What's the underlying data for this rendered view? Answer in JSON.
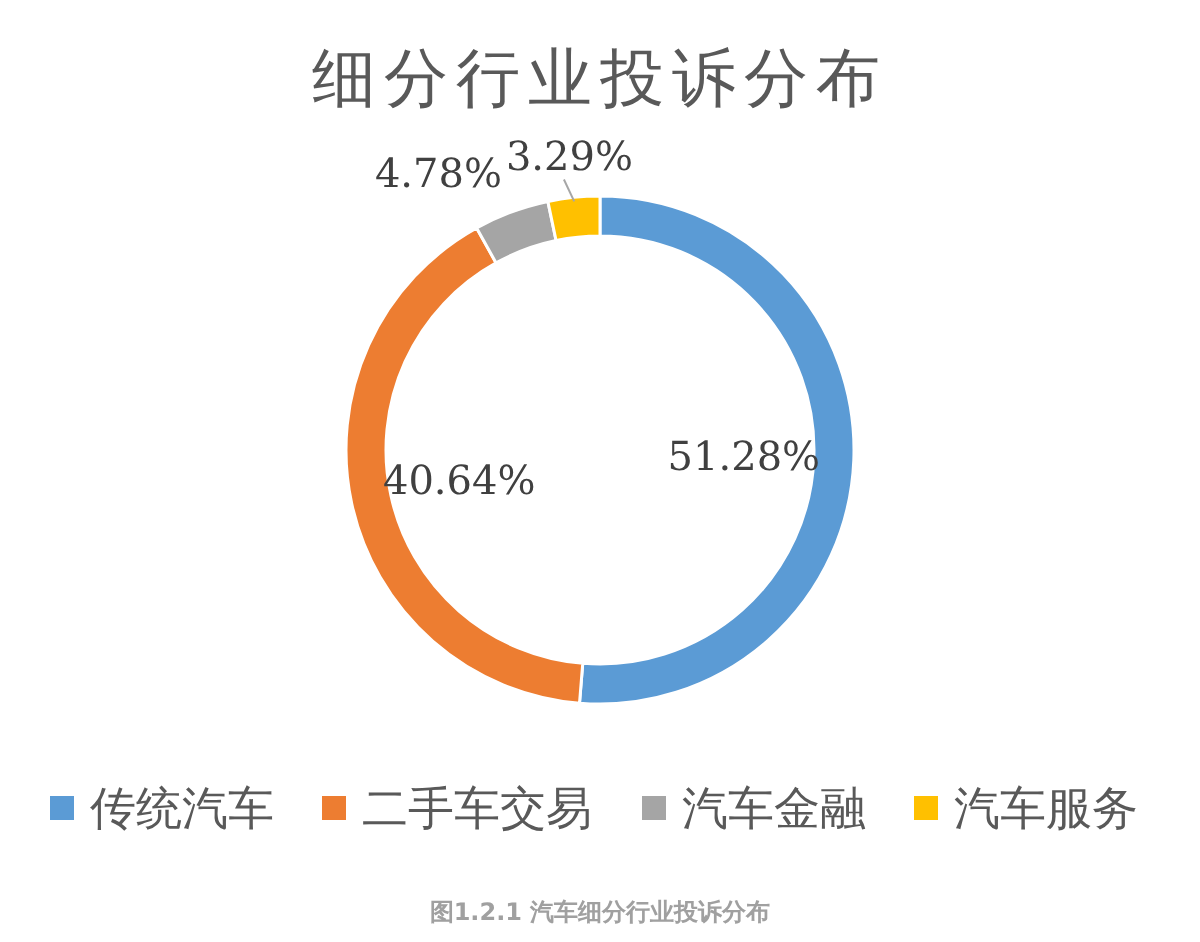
{
  "chart_data": {
    "type": "donut",
    "title": "细分行业投诉分布",
    "categories": [
      "传统汽车",
      "二手车交易",
      "汽车金融",
      "汽车服务"
    ],
    "values": [
      51.28,
      40.64,
      4.78,
      3.29
    ],
    "colors": [
      "#5b9bd5",
      "#ed7d31",
      "#a5a5a5",
      "#ffc000"
    ],
    "value_labels": [
      "51.28%",
      "40.64%",
      "4.78%",
      "3.29%"
    ],
    "legend": "bottom",
    "annotations": [
      "图1.2.1  汽车细分行业投诉分布"
    ]
  }
}
